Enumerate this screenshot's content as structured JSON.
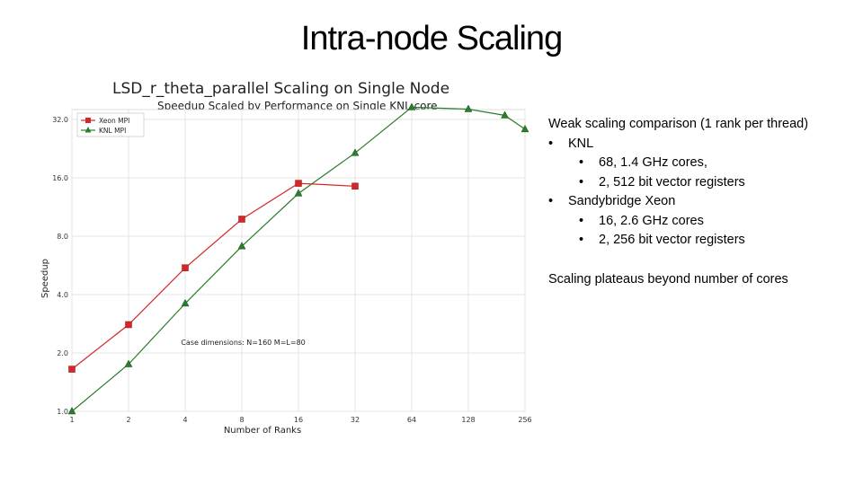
{
  "slide": {
    "title": "Intra-node Scaling"
  },
  "notes": {
    "heading": "Weak scaling comparison (1 rank per thread)",
    "groups": [
      {
        "label": "KNL",
        "items": [
          "68, 1.4 GHz cores,",
          "2, 512 bit vector registers"
        ]
      },
      {
        "label": "Sandybridge Xeon",
        "items": [
          "16, 2.6 GHz cores",
          "2, 256 bit vector registers"
        ]
      }
    ],
    "bullet": "•",
    "conclusion": "Scaling plateaus beyond number of cores"
  },
  "chart_data": {
    "type": "line",
    "title": "LSD_r_theta_parallel Scaling on Single Node",
    "subtitle": "Speedup Scaled by Performance on Single KNL core",
    "xlabel": "Number of Ranks",
    "ylabel": "Speedup",
    "x_scale": "log2",
    "y_scale": "log2",
    "xlim": [
      1,
      256
    ],
    "ylim": [
      1,
      36
    ],
    "x_ticks": [
      1,
      2,
      4,
      8,
      16,
      32,
      64,
      128,
      256
    ],
    "x_tick_labels": [
      "1",
      "2",
      "4",
      "8",
      "16",
      "32",
      "64",
      "128",
      "256"
    ],
    "y_ticks": [
      1,
      2,
      4,
      8,
      16,
      32
    ],
    "y_tick_labels": [
      "1.0",
      "2.0",
      "4.0",
      "8.0",
      "16.0",
      "32.0"
    ],
    "grid": true,
    "legend_position": "top-left",
    "annotation": "Case dimensions: N=160 M=L=80",
    "series": [
      {
        "name": "Xeon MPI",
        "color": "#d62728",
        "marker": "square",
        "x": [
          1,
          2,
          4,
          8,
          16,
          32
        ],
        "y": [
          1.65,
          2.8,
          5.5,
          9.8,
          15.0,
          14.5
        ]
      },
      {
        "name": "KNL MPI",
        "color": "#2a7d2a",
        "marker": "triangle",
        "x": [
          1,
          2,
          4,
          8,
          16,
          32,
          64,
          128,
          200,
          256
        ],
        "y": [
          1.0,
          1.75,
          3.6,
          7.1,
          13.3,
          21.5,
          37.0,
          36.2,
          33.6,
          28.5
        ]
      }
    ]
  }
}
